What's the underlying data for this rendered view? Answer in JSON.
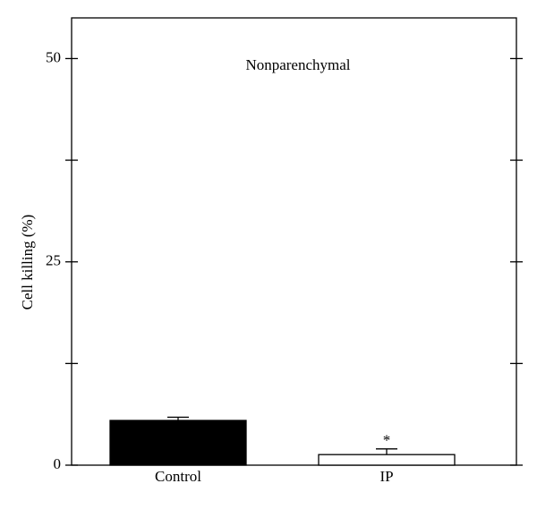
{
  "chart_data": {
    "type": "bar",
    "title": "Nonparenchymal",
    "y_label": "Cell killing (%)",
    "categories": [
      "Control",
      "IP"
    ],
    "values": [
      5.5,
      1.3
    ],
    "errors": [
      0.4,
      0.7
    ],
    "colors": [
      "#000000",
      "#ffffff"
    ],
    "significance": [
      null,
      "*"
    ],
    "ylim": [
      0,
      55
    ],
    "yticks": [
      0,
      25,
      50
    ],
    "minor_yticks": [
      12.5,
      37.5
    ],
    "grid": false
  }
}
